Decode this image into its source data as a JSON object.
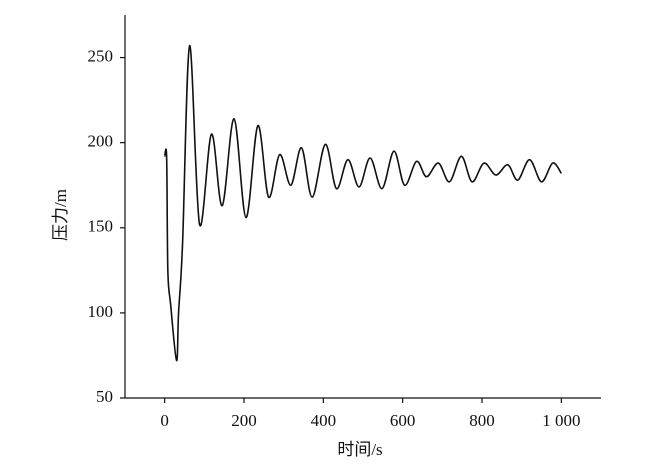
{
  "chart_data": {
    "type": "line",
    "x_label": "时间/s",
    "y_label": "压力/m",
    "xlim": [
      -100,
      1100
    ],
    "ylim": [
      50,
      275
    ],
    "xticks": [
      0,
      200,
      400,
      600,
      800,
      {
        "value": 1000,
        "label": "1 000"
      }
    ],
    "yticks": [
      50,
      100,
      150,
      200,
      250
    ],
    "series": [
      {
        "color": "#111111",
        "x": [
          0,
          5,
          8,
          15,
          30,
          35,
          45,
          63,
          88,
          118,
          145,
          175,
          205,
          235,
          262,
          290,
          318,
          345,
          372,
          405,
          433,
          462,
          490,
          518,
          548,
          578,
          605,
          635,
          660,
          690,
          718,
          748,
          775,
          805,
          835,
          865,
          890,
          920,
          950,
          978,
          1000
        ],
        "values": [
          192,
          191,
          125,
          105,
          72,
          100,
          140,
          257,
          152,
          205,
          163,
          214,
          156,
          210,
          168,
          193,
          175,
          197,
          168,
          199,
          173,
          190,
          174,
          191,
          173,
          195,
          175,
          189,
          180,
          188,
          177,
          192,
          177,
          188,
          181,
          187,
          178,
          190,
          177,
          188,
          182
        ]
      }
    ]
  }
}
